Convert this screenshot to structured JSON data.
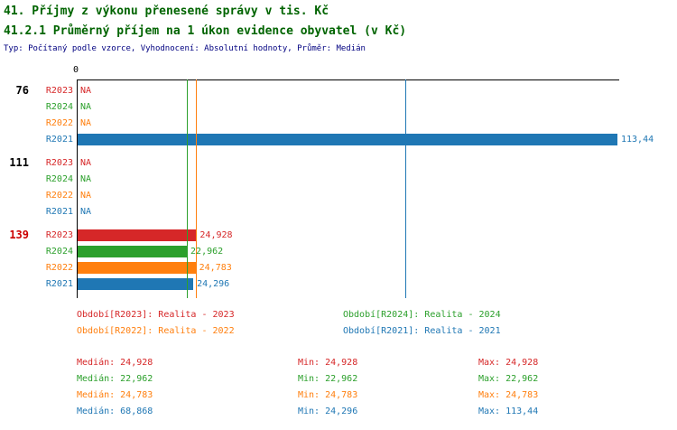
{
  "page": {
    "title": "41. Příjmy z výkonu přenesené správy v tis. Kč",
    "subtitle": "41.2.1 Průměrný příjem na 1 úkon evidence obyvatel (v Kč)",
    "meta": "Typ: Počítaný podle vzorce, Vyhodnocení: Absolutní hodnoty, Průměr: Medián"
  },
  "colors": {
    "R2023": "#d62728",
    "R2024": "#2ca02c",
    "R2022": "#ff7f0e",
    "R2021": "#1f77b4",
    "title": "#006400",
    "meta": "#000080",
    "axis": "#000000",
    "group_label_default": "#000000",
    "group_label_highlight": "#cc0000"
  },
  "chart_data": {
    "type": "bar",
    "orientation": "horizontal",
    "zero_label": "0",
    "x_axis": {
      "min": 0,
      "max": 113.44
    },
    "grid": false,
    "groups": [
      {
        "label": "76",
        "highlight": false,
        "bars": [
          {
            "series": "R2023",
            "value": null,
            "label": "NA"
          },
          {
            "series": "R2024",
            "value": null,
            "label": "NA"
          },
          {
            "series": "R2022",
            "value": null,
            "label": "NA"
          },
          {
            "series": "R2021",
            "value": 113.44,
            "label": "113,44"
          }
        ]
      },
      {
        "label": "111",
        "highlight": false,
        "bars": [
          {
            "series": "R2023",
            "value": null,
            "label": "NA"
          },
          {
            "series": "R2024",
            "value": null,
            "label": "NA"
          },
          {
            "series": "R2022",
            "value": null,
            "label": "NA"
          },
          {
            "series": "R2021",
            "value": null,
            "label": "NA"
          }
        ]
      },
      {
        "label": "139",
        "highlight": true,
        "bars": [
          {
            "series": "R2023",
            "value": 24.928,
            "label": "24,928"
          },
          {
            "series": "R2024",
            "value": 22.962,
            "label": "22,962"
          },
          {
            "series": "R2022",
            "value": 24.783,
            "label": "24,783"
          },
          {
            "series": "R2021",
            "value": 24.296,
            "label": "24,296"
          }
        ]
      }
    ],
    "median_lines": [
      {
        "series": "R2023",
        "value": 24.928
      },
      {
        "series": "R2024",
        "value": 22.962
      },
      {
        "series": "R2022",
        "value": 24.783
      },
      {
        "series": "R2021",
        "value": 68.868
      }
    ],
    "legend": [
      {
        "series": "R2023",
        "text": "Období[R2023]: Realita - 2023"
      },
      {
        "series": "R2024",
        "text": "Období[R2024]: Realita - 2024"
      },
      {
        "series": "R2022",
        "text": "Období[R2022]: Realita - 2022"
      },
      {
        "series": "R2021",
        "text": "Období[R2021]: Realita - 2021"
      }
    ],
    "stats": [
      {
        "series": "R2023",
        "median": "Medián: 24,928",
        "min": "Min: 24,928",
        "max": "Max: 24,928"
      },
      {
        "series": "R2024",
        "median": "Medián: 22,962",
        "min": "Min: 22,962",
        "max": "Max: 22,962"
      },
      {
        "series": "R2022",
        "median": "Medián: 24,783",
        "min": "Min: 24,783",
        "max": "Max: 24,783"
      },
      {
        "series": "R2021",
        "median": "Medián: 68,868",
        "min": "Min: 24,296",
        "max": "Max: 113,44"
      }
    ]
  }
}
